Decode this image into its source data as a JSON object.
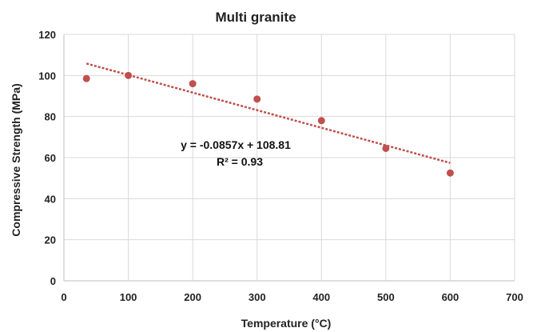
{
  "chart_data": {
    "type": "scatter",
    "title": "Multi granite",
    "xlabel": "Temperature (°C)",
    "ylabel": "Compressive Strength (MPa)",
    "xlim": [
      0,
      700
    ],
    "ylim": [
      0,
      120
    ],
    "x_ticks": [
      "0",
      "100",
      "200",
      "300",
      "400",
      "500",
      "600",
      "700"
    ],
    "y_ticks": [
      "0",
      "20",
      "40",
      "60",
      "80",
      "100",
      "120"
    ],
    "grid": true,
    "legend": "none",
    "series": [
      {
        "x": [
          35,
          100,
          200,
          300,
          400,
          500,
          600
        ],
        "y": [
          98.5,
          100,
          96,
          88.5,
          78,
          64.5,
          52.5
        ],
        "color": "#c0504d"
      }
    ],
    "trendline": {
      "type": "linear",
      "slope": -0.0857,
      "intercept": 108.81,
      "x_range": [
        35,
        600
      ],
      "color": "#c0504d",
      "style": "dotted"
    },
    "annotations": {
      "equation": "y = -0.0857x + 108.81",
      "r_squared": "R² = 0.93"
    }
  }
}
